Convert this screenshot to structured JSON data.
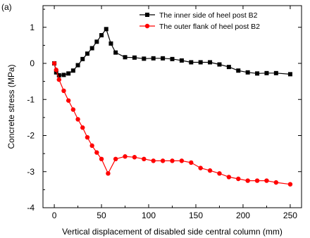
{
  "panel_label": "(a)",
  "chart_data": {
    "type": "line",
    "xlabel": "Vertical displacement of disabled side central column (mm)",
    "ylabel": "Concrete stress  (MPa)",
    "xlim": [
      -12,
      262
    ],
    "ylim": [
      -4,
      1.6
    ],
    "xticks": [
      0,
      50,
      100,
      150,
      200,
      250
    ],
    "yticks": [
      -4,
      -3,
      -2,
      -1,
      0,
      1
    ],
    "legend_position": "top-right",
    "grid": false,
    "series": [
      {
        "name": "The inner side of heel post B2",
        "color": "#000000",
        "marker": "square",
        "x": [
          0,
          2,
          5,
          10,
          15,
          20,
          25,
          30,
          35,
          40,
          45,
          50,
          55,
          60,
          65,
          75,
          85,
          95,
          105,
          115,
          125,
          135,
          145,
          155,
          165,
          175,
          185,
          195,
          205,
          215,
          225,
          235,
          250
        ],
        "y": [
          0.0,
          -0.25,
          -0.33,
          -0.32,
          -0.28,
          -0.2,
          -0.05,
          0.12,
          0.27,
          0.42,
          0.6,
          0.78,
          0.95,
          0.55,
          0.3,
          0.17,
          0.16,
          0.13,
          0.14,
          0.14,
          0.12,
          0.08,
          0.03,
          0.03,
          0.03,
          -0.03,
          -0.1,
          -0.2,
          -0.25,
          -0.28,
          -0.27,
          -0.27,
          -0.3
        ]
      },
      {
        "name": "The outer  flank of heel post B2",
        "color": "#ff0000",
        "marker": "circle",
        "x": [
          0,
          2,
          5,
          10,
          15,
          20,
          25,
          30,
          35,
          40,
          45,
          50,
          57,
          65,
          75,
          85,
          95,
          105,
          115,
          125,
          135,
          145,
          155,
          165,
          175,
          185,
          195,
          205,
          215,
          225,
          235,
          250
        ],
        "y": [
          0.0,
          -0.18,
          -0.45,
          -0.76,
          -1.03,
          -1.28,
          -1.55,
          -1.78,
          -2.05,
          -2.28,
          -2.47,
          -2.65,
          -3.05,
          -2.65,
          -2.58,
          -2.6,
          -2.65,
          -2.7,
          -2.7,
          -2.7,
          -2.7,
          -2.75,
          -2.9,
          -2.97,
          -3.05,
          -3.15,
          -3.2,
          -3.25,
          -3.25,
          -3.25,
          -3.3,
          -3.35
        ]
      }
    ]
  }
}
